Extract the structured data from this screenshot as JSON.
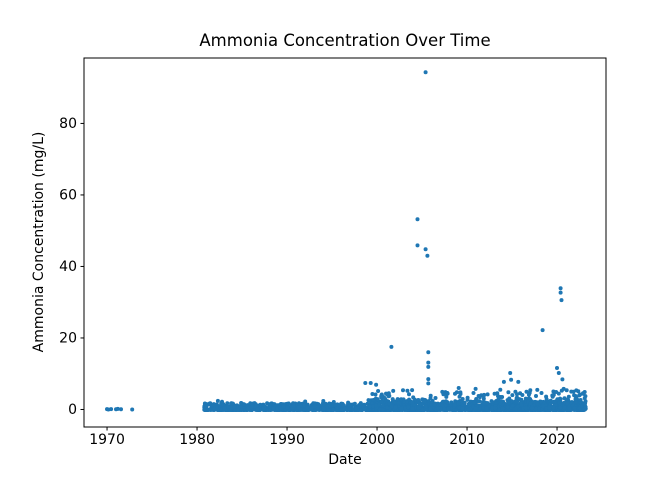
{
  "chart_data": {
    "type": "scatter",
    "title": "Ammonia Concentration Over Time",
    "xlabel": "Date",
    "ylabel": "Ammonia Concentration (mg/L)",
    "x_ticks": [
      1970,
      1980,
      1990,
      2000,
      2010,
      2020
    ],
    "y_ticks": [
      0,
      20,
      40,
      60,
      80
    ],
    "xlim": [
      1967.44,
      2025.44
    ],
    "ylim": [
      -4.9,
      98.3
    ],
    "grid": false,
    "legend": null,
    "marker": {
      "color": "#1f77b4",
      "radius": 2
    },
    "axis_color": "#000000",
    "seed": 7,
    "outliers": [
      [
        1970.0,
        0.1
      ],
      [
        1970.15,
        0.0
      ],
      [
        1970.45,
        0.1
      ],
      [
        1971.0,
        0.05
      ],
      [
        1971.2,
        0.15
      ],
      [
        1971.55,
        0.05
      ],
      [
        1972.8,
        0.0
      ],
      [
        1995.2,
        2.1
      ],
      [
        1998.7,
        7.4
      ],
      [
        1999.3,
        7.4
      ],
      [
        1999.9,
        6.9
      ],
      [
        2001.6,
        17.5
      ],
      [
        2004.5,
        53.2
      ],
      [
        2004.5,
        45.9
      ],
      [
        2005.4,
        94.3
      ],
      [
        2005.4,
        44.8
      ],
      [
        2005.6,
        43.0
      ],
      [
        2005.7,
        16.0
      ],
      [
        2005.7,
        13.1
      ],
      [
        2005.7,
        11.9
      ],
      [
        2005.7,
        8.5
      ],
      [
        2005.7,
        7.3
      ],
      [
        2007.8,
        4.6
      ],
      [
        2013.7,
        5.5
      ],
      [
        2014.1,
        7.7
      ],
      [
        2014.8,
        10.2
      ],
      [
        2014.9,
        8.3
      ],
      [
        2015.7,
        7.7
      ],
      [
        2018.4,
        22.2
      ],
      [
        2020.0,
        11.6
      ],
      [
        2020.2,
        10.2
      ],
      [
        2020.4,
        33.9
      ],
      [
        2020.4,
        32.7
      ],
      [
        2020.5,
        30.6
      ],
      [
        2020.6,
        8.4
      ],
      [
        2021.9,
        4.0
      ]
    ],
    "dense_clusters": [
      {
        "x_min": 1980.8,
        "x_max": 1999.2,
        "count": 700,
        "y_min": -0.15,
        "y_max": 1.8,
        "bias": 3.0
      },
      {
        "x_min": 1981.0,
        "x_max": 1999.2,
        "count": 60,
        "y_min": 0.1,
        "y_max": 2.4,
        "bias": 1.8
      },
      {
        "x_min": 1999.2,
        "x_max": 2023.2,
        "count": 1500,
        "y_min": -0.15,
        "y_max": 2.4,
        "bias": 2.8
      },
      {
        "x_min": 1999.2,
        "x_max": 2023.2,
        "count": 240,
        "y_min": 0.2,
        "y_max": 6.2,
        "bias": 2.2
      },
      {
        "x_min": 2014.5,
        "x_max": 2023.2,
        "count": 90,
        "y_min": 0.3,
        "y_max": 5.6,
        "bias": 1.8
      },
      {
        "x_min": 1999.0,
        "x_max": 2002.5,
        "count": 60,
        "y_min": 0.2,
        "y_max": 4.5,
        "bias": 2.0
      }
    ]
  }
}
